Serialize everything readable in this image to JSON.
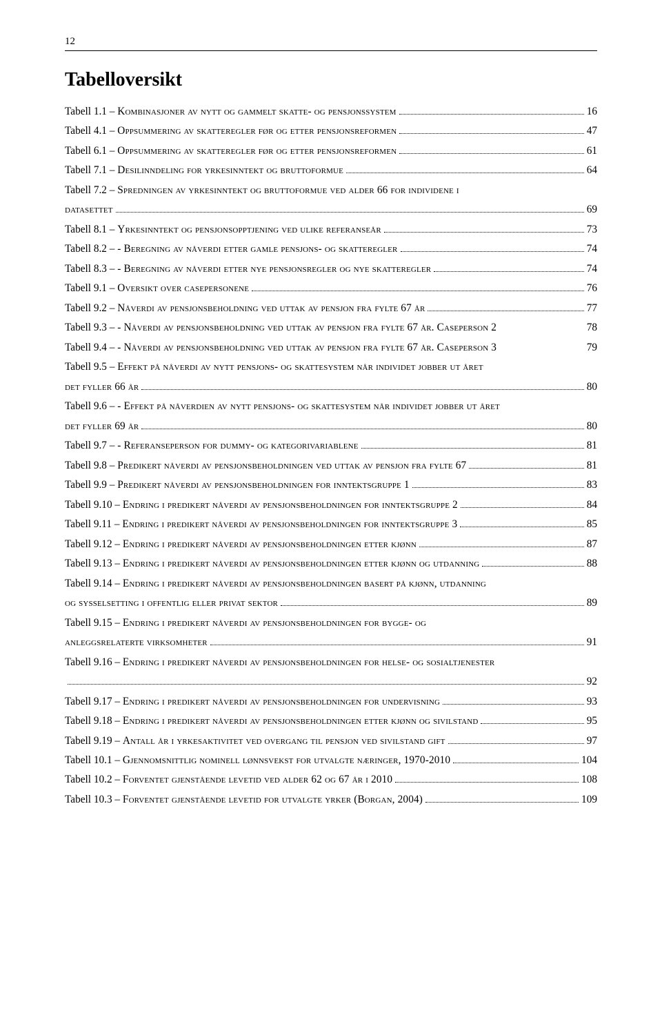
{
  "page_number": "12",
  "heading": "Tabelloversikt",
  "label_word": "Tabell",
  "entries": [
    {
      "num": "1.1",
      "title": "Kombinasjoner av nytt og gammelt skatte- og pensjonssystem",
      "page": "16"
    },
    {
      "num": "4.1",
      "title": "Oppsummering av skatteregler før og etter pensjonsreformen",
      "page": "47"
    },
    {
      "num": "6.1",
      "title": "Oppsummering av skatteregler før og etter pensjonsreformen",
      "page": "61"
    },
    {
      "num": "7.1",
      "title": "Desilinndeling for yrkesinntekt og bruttoformue",
      "page": "64"
    },
    {
      "num": "7.2",
      "title_a": "Spredningen av yrkesinntekt og bruttoformue ved alder 66 for individene i",
      "title_b": "datasettet",
      "page": "69",
      "wrap": true,
      "indent_b": true
    },
    {
      "num": "8.1",
      "title": "Yrkesinntekt og pensjonsopptjening ved ulike referanseår",
      "page": "73"
    },
    {
      "num": "8.2",
      "title": "- Beregning av nåverdi etter gamle pensjons- og skatteregler",
      "page": "74"
    },
    {
      "num": "8.3",
      "title": "- Beregning av nåverdi etter nye pensjonsregler og nye skatteregler",
      "page": "74"
    },
    {
      "num": "9.1",
      "title": "Oversikt over casepersonene",
      "page": "76"
    },
    {
      "num": "9.2",
      "title": "Nåverdi av pensjonsbeholdning ved uttak av pensjon fra fylte 67 år",
      "page": "77"
    },
    {
      "num": "9.3",
      "title": "- Nåverdi av pensjonsbeholdning ved uttak av pensjon fra fylte 67 år. Caseperson 2",
      "page": "78",
      "no_leader": true
    },
    {
      "num": "9.4",
      "title": "- Nåverdi av pensjonsbeholdning ved uttak av pensjon fra fylte 67 år. Caseperson 3",
      "page": "79",
      "no_leader": true
    },
    {
      "num": "9.5",
      "title_a": "Effekt på nåverdi av nytt pensjons- og skattesystem når individet jobber ut året",
      "title_b": "det fyller 66 år",
      "page": "80",
      "wrap": true,
      "indent_b": true
    },
    {
      "num": "9.6",
      "title_a": "- Effekt på nåverdien av nytt pensjons- og skattesystem når individet jobber ut året",
      "title_b": "det fyller 69 år",
      "page": "80",
      "wrap": true,
      "indent_b": true
    },
    {
      "num": "9.7",
      "title": "- Referanseperson for dummy- og kategorivariablene",
      "page": "81"
    },
    {
      "num": "9.8",
      "title": "Predikert nåverdi av pensjonsbeholdningen ved uttak av pensjon fra fylte 67",
      "page": "81"
    },
    {
      "num": "9.9",
      "title": "Predikert nåverdi av pensjonsbeholdningen for inntektsgruppe 1",
      "page": "83"
    },
    {
      "num": "9.10",
      "title": "Endring i predikert nåverdi av pensjonsbeholdningen for inntektsgruppe 2",
      "page": "84"
    },
    {
      "num": "9.11",
      "title": "Endring i predikert nåverdi av pensjonsbeholdningen for inntektsgruppe 3",
      "page": "85"
    },
    {
      "num": "9.12",
      "title": "Endring i predikert nåverdi av pensjonsbeholdningen etter kjønn",
      "page": "87"
    },
    {
      "num": "9.13",
      "title": "Endring i predikert nåverdi av pensjonsbeholdningen etter kjønn og utdanning",
      "page": "88",
      "tight_leader": true
    },
    {
      "num": "9.14",
      "title_a": "Endring i predikert nåverdi av pensjonsbeholdningen basert på kjønn, utdanning",
      "title_b": "og sysselsetting i offentlig eller privat sektor",
      "page": "89",
      "wrap": true,
      "indent_b": true
    },
    {
      "num": "9.15",
      "title_a": "Endring i predikert nåverdi av pensjonsbeholdningen for bygge- og",
      "title_b": "anleggsrelaterte virksomheter",
      "page": "91",
      "wrap": true,
      "indent_b": true
    },
    {
      "num": "9.16",
      "title_a": "Endring i predikert nåverdi av pensjonsbeholdningen for helse- og sosialtjenester",
      "title_b": "",
      "page": "92",
      "wrap": true,
      "indent_b": true
    },
    {
      "num": "9.17",
      "title": "Endring i predikert nåverdi av pensjonsbeholdningen for undervisning",
      "page": "93"
    },
    {
      "num": "9.18",
      "title": "Endring i predikert nåverdi av pensjonsbeholdningen etter kjønn og sivilstand",
      "page": "95"
    },
    {
      "num": "9.19",
      "title": "Antall år i yrkesaktivitet ved overgang til pensjon ved sivilstand gift",
      "page": "97"
    },
    {
      "num": "10.1",
      "title": "Gjennomsnittlig nominell lønnsvekst for utvalgte næringer, 1970-2010",
      "page": "104"
    },
    {
      "num": "10.2",
      "title": "Forventet gjenstående levetid ved alder 62 og 67 år i 2010",
      "page": "108"
    },
    {
      "num": "10.3",
      "title": "Forventet gjenstående levetid for utvalgte yrker (Borgan, 2004)",
      "page": "109"
    }
  ]
}
